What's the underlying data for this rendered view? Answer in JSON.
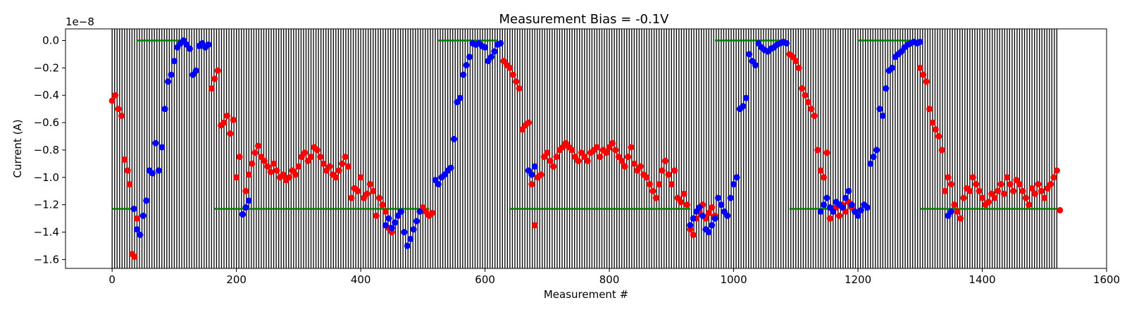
{
  "chart_data": {
    "type": "scatter",
    "title": "Measurement Bias = -0.1V",
    "xlabel": "Measurement #",
    "ylabel": "Current (A)",
    "offset_text": "1e−8",
    "xlim": [
      -75,
      1600
    ],
    "ylim": [
      -1.665,
      0.085
    ],
    "x_ticks": [
      0,
      200,
      400,
      600,
      800,
      1000,
      1200,
      1400,
      1600
    ],
    "y_ticks": [
      0.0,
      -0.2,
      -0.4,
      -0.6,
      -0.8,
      -1.0,
      -1.2,
      -1.4,
      -1.6
    ],
    "x_tick_labels": [
      "0",
      "200",
      "400",
      "600",
      "800",
      "1000",
      "1200",
      "1400",
      "1600"
    ],
    "y_tick_labels": [
      "0.0",
      "−0.2",
      "−0.4",
      "−0.6",
      "−0.8",
      "−1.0",
      "−1.2",
      "−1.4",
      "−1.6"
    ],
    "grid": false,
    "vertical_lines": {
      "start": 0,
      "end": 1520,
      "step": 4,
      "color": "#000000"
    },
    "colors": {
      "red": "#ff0000",
      "blue": "#0000ff",
      "green": "#008000"
    },
    "green_segments": [
      {
        "x": [
          40,
          120
        ],
        "y": 0.0
      },
      {
        "x": [
          525,
          620
        ],
        "y": 0.0
      },
      {
        "x": [
          970,
          1080
        ],
        "y": 0.0
      },
      {
        "x": [
          1200,
          1300
        ],
        "y": 0.0
      },
      {
        "x": [
          0,
          40
        ],
        "y": -1.23
      },
      {
        "x": [
          165,
          510
        ],
        "y": -1.23
      },
      {
        "x": [
          640,
          930
        ],
        "y": -1.23
      },
      {
        "x": [
          1090,
          1165
        ],
        "y": -1.23
      },
      {
        "x": [
          1300,
          1520
        ],
        "y": -1.23
      }
    ],
    "series": [
      {
        "color": "red",
        "x": [
          0,
          5,
          10,
          15,
          20,
          25,
          28,
          32,
          36,
          40,
          160,
          165,
          170,
          175,
          180,
          185,
          190,
          195,
          200,
          205,
          210,
          215,
          220,
          225,
          230,
          235,
          240,
          245,
          250,
          255,
          260,
          265,
          270,
          275,
          280,
          285,
          290,
          295,
          300,
          305,
          310,
          315,
          320,
          325,
          330,
          335,
          340,
          345,
          350,
          355,
          360,
          365,
          370,
          375,
          380,
          385,
          390,
          395,
          400,
          405,
          410,
          415,
          420,
          425,
          430,
          435,
          440,
          445,
          450,
          500,
          505,
          510,
          515,
          630,
          635,
          640,
          645,
          650,
          655,
          660,
          665,
          670,
          675,
          680,
          685,
          690,
          695,
          700,
          705,
          710,
          715,
          720,
          725,
          730,
          735,
          740,
          745,
          750,
          755,
          760,
          765,
          770,
          775,
          780,
          785,
          790,
          795,
          800,
          805,
          810,
          815,
          820,
          825,
          830,
          835,
          840,
          845,
          850,
          855,
          860,
          865,
          870,
          875,
          880,
          885,
          890,
          895,
          900,
          905,
          910,
          915,
          920,
          925,
          930,
          935,
          940,
          945,
          950,
          955,
          960,
          965,
          970,
          1090,
          1095,
          1100,
          1105,
          1110,
          1115,
          1120,
          1125,
          1130,
          1135,
          1140,
          1145,
          1150,
          1155,
          1160,
          1165,
          1170,
          1175,
          1180,
          1185,
          1190,
          1195,
          1300,
          1305,
          1310,
          1315,
          1320,
          1325,
          1330,
          1335,
          1340,
          1345,
          1350,
          1355,
          1360,
          1365,
          1370,
          1375,
          1380,
          1385,
          1390,
          1395,
          1400,
          1405,
          1410,
          1415,
          1420,
          1425,
          1430,
          1435,
          1440,
          1445,
          1450,
          1455,
          1460,
          1465,
          1470,
          1475,
          1480,
          1485,
          1490,
          1495,
          1500,
          1505,
          1510,
          1515,
          1520,
          1525
        ],
        "y": [
          -0.44,
          -0.4,
          -0.5,
          -0.55,
          -0.87,
          -0.95,
          -1.05,
          -1.56,
          -1.58,
          -1.3,
          -0.35,
          -0.28,
          -0.22,
          -0.62,
          -0.6,
          -0.55,
          -0.68,
          -0.58,
          -1.0,
          -0.85,
          -1.27,
          -1.1,
          -0.98,
          -0.9,
          -0.82,
          -0.77,
          -0.85,
          -0.88,
          -0.92,
          -0.96,
          -0.9,
          -0.95,
          -1.0,
          -0.98,
          -1.02,
          -1.0,
          -0.95,
          -0.98,
          -0.92,
          -0.85,
          -0.82,
          -0.88,
          -0.85,
          -0.78,
          -0.8,
          -0.85,
          -0.9,
          -0.95,
          -0.92,
          -0.98,
          -1.0,
          -0.95,
          -0.9,
          -0.85,
          -0.92,
          -1.15,
          -1.08,
          -1.1,
          -1.0,
          -1.15,
          -1.12,
          -1.05,
          -1.1,
          -1.28,
          -1.15,
          -1.2,
          -1.25,
          -1.37,
          -1.4,
          -1.22,
          -1.25,
          -1.28,
          -1.26,
          -0.15,
          -0.18,
          -0.2,
          -0.25,
          -0.3,
          -0.35,
          -0.65,
          -0.62,
          -0.6,
          -1.05,
          -1.35,
          -1.0,
          -0.98,
          -0.85,
          -0.82,
          -0.88,
          -0.92,
          -0.85,
          -0.8,
          -0.78,
          -0.75,
          -0.78,
          -0.8,
          -0.85,
          -0.88,
          -0.82,
          -0.85,
          -0.88,
          -0.82,
          -0.8,
          -0.78,
          -0.85,
          -0.8,
          -0.82,
          -0.78,
          -0.75,
          -0.8,
          -0.85,
          -0.88,
          -0.92,
          -0.85,
          -0.78,
          -0.9,
          -0.95,
          -0.92,
          -0.98,
          -1.0,
          -1.05,
          -1.1,
          -1.15,
          -1.05,
          -0.95,
          -0.88,
          -0.98,
          -1.05,
          -0.95,
          -1.15,
          -1.18,
          -1.12,
          -1.2,
          -1.38,
          -1.42,
          -1.3,
          -1.25,
          -1.2,
          -1.3,
          -1.26,
          -1.22,
          -1.28,
          -0.1,
          -0.12,
          -0.15,
          -0.2,
          -0.35,
          -0.4,
          -0.45,
          -0.5,
          -0.55,
          -0.8,
          -0.95,
          -1.0,
          -0.82,
          -1.3,
          -1.25,
          -1.22,
          -1.28,
          -1.2,
          -1.25,
          -1.18,
          -1.22,
          -1.25,
          -0.2,
          -0.25,
          -0.3,
          -0.5,
          -0.6,
          -0.65,
          -0.7,
          -0.8,
          -1.1,
          -1.0,
          -1.05,
          -1.2,
          -1.25,
          -1.3,
          -1.15,
          -1.08,
          -1.1,
          -1.0,
          -1.05,
          -1.1,
          -1.15,
          -1.2,
          -1.18,
          -1.12,
          -1.15,
          -1.1,
          -1.05,
          -1.12,
          -1.0,
          -1.05,
          -1.1,
          -1.02,
          -1.05,
          -1.1,
          -1.15,
          -1.2,
          -1.08,
          -1.12,
          -1.05,
          -1.1,
          -1.15,
          -1.08,
          -1.05,
          -1.0,
          -0.95,
          -1.24
        ]
      },
      {
        "color": "blue",
        "x": [
          35,
          40,
          45,
          50,
          55,
          60,
          65,
          70,
          75,
          80,
          85,
          90,
          95,
          100,
          105,
          110,
          115,
          120,
          125,
          130,
          135,
          140,
          145,
          150,
          155,
          210,
          215,
          220,
          440,
          445,
          450,
          455,
          460,
          465,
          470,
          475,
          480,
          485,
          490,
          495,
          520,
          525,
          530,
          535,
          540,
          545,
          550,
          555,
          560,
          565,
          570,
          575,
          580,
          585,
          590,
          595,
          600,
          605,
          610,
          615,
          620,
          625,
          670,
          675,
          680,
          930,
          935,
          940,
          945,
          950,
          955,
          960,
          965,
          970,
          975,
          980,
          985,
          990,
          995,
          1000,
          1005,
          1010,
          1015,
          1020,
          1025,
          1030,
          1035,
          1040,
          1045,
          1050,
          1055,
          1060,
          1065,
          1070,
          1075,
          1080,
          1085,
          1140,
          1145,
          1150,
          1155,
          1160,
          1165,
          1170,
          1175,
          1180,
          1185,
          1190,
          1195,
          1200,
          1205,
          1210,
          1215,
          1220,
          1225,
          1230,
          1235,
          1240,
          1245,
          1250,
          1255,
          1260,
          1265,
          1270,
          1275,
          1280,
          1285,
          1290,
          1295,
          1300,
          1345,
          1350
        ],
        "y": [
          -1.23,
          -1.38,
          -1.42,
          -1.28,
          -1.17,
          -0.95,
          -0.97,
          -0.75,
          -0.95,
          -0.78,
          -0.5,
          -0.3,
          -0.25,
          -0.15,
          -0.05,
          -0.02,
          0.0,
          -0.03,
          -0.06,
          -0.25,
          -0.22,
          -0.04,
          -0.02,
          -0.05,
          -0.03,
          -1.27,
          -1.22,
          -1.17,
          -1.35,
          -1.3,
          -1.37,
          -1.33,
          -1.28,
          -1.25,
          -1.4,
          -1.5,
          -1.45,
          -1.38,
          -1.32,
          -1.25,
          -1.02,
          -1.05,
          -1.0,
          -0.98,
          -0.95,
          -0.93,
          -0.72,
          -0.45,
          -0.42,
          -0.25,
          -0.18,
          -0.12,
          -0.02,
          -0.03,
          -0.02,
          -0.04,
          -0.05,
          -0.15,
          -0.12,
          -0.08,
          -0.03,
          -0.02,
          -0.95,
          -0.98,
          -0.92,
          -1.35,
          -1.3,
          -1.25,
          -1.22,
          -1.28,
          -1.38,
          -1.4,
          -1.35,
          -1.3,
          -1.15,
          -1.2,
          -1.25,
          -1.28,
          -1.15,
          -1.05,
          -1.0,
          -0.5,
          -0.48,
          -0.42,
          -0.1,
          -0.15,
          -0.18,
          -0.02,
          -0.05,
          -0.07,
          -0.08,
          -0.06,
          -0.05,
          -0.03,
          -0.02,
          -0.01,
          -0.02,
          -1.25,
          -1.2,
          -1.15,
          -1.22,
          -1.25,
          -1.18,
          -1.2,
          -1.22,
          -1.15,
          -1.1,
          -1.2,
          -1.25,
          -1.28,
          -1.24,
          -1.2,
          -1.22,
          -0.9,
          -0.85,
          -0.8,
          -0.5,
          -0.55,
          -0.35,
          -0.22,
          -0.2,
          -0.12,
          -0.1,
          -0.08,
          -0.05,
          -0.03,
          -0.02,
          -0.01,
          -0.02,
          -0.01,
          -1.28,
          -1.25
        ]
      }
    ]
  }
}
